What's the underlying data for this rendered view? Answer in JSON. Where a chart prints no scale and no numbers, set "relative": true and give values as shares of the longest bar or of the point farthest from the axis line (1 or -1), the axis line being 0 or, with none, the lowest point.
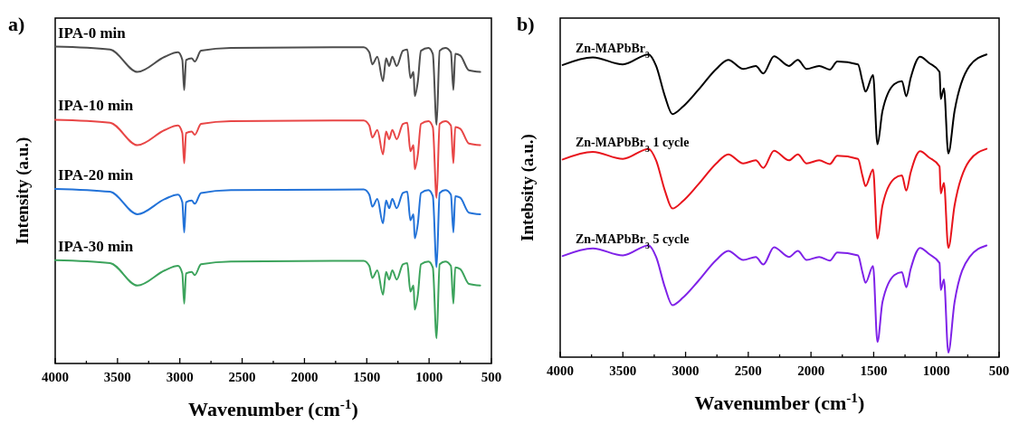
{
  "chart_data": [
    {
      "type": "line",
      "title": "a)",
      "xlabel": "Wavenumber (cm$^{-1}$)",
      "ylabel": "Intensity (a.u.)",
      "relative": true,
      "tick_labels": "x",
      "xlim": [
        4000,
        500
      ],
      "xticks": [
        4000,
        {
          "value": 3750,
          "label": null
        },
        3500,
        {
          "value": 3250,
          "label": null
        },
        3000,
        {
          "value": 2750,
          "label": null
        },
        2500,
        {
          "value": 2250,
          "label": null
        },
        2000,
        {
          "value": 1750,
          "label": null
        },
        1500,
        {
          "value": 1250,
          "label": null
        },
        1000,
        {
          "value": 750,
          "label": null
        },
        500
      ],
      "x": [
        4000,
        3560,
        3340,
        3120,
        3015,
        2980,
        2965,
        2950,
        2905,
        2880,
        2830,
        2590,
        1525,
        1480,
        1455,
        1415,
        1370,
        1345,
        1320,
        1295,
        1260,
        1210,
        1175,
        1150,
        1125,
        1115,
        1090,
        1065,
        1005,
        970,
        940,
        915,
        870,
        825,
        805,
        790,
        750,
        680,
        590
      ],
      "series": [
        {
          "name": "IPA-0 min",
          "color": "#4d4d4d",
          "values": [
            1.0,
            0.991,
            0.92,
            0.968,
            0.982,
            0.958,
            0.863,
            0.958,
            0.963,
            0.953,
            0.987,
            0.996,
            0.998,
            0.982,
            0.944,
            0.968,
            0.891,
            0.963,
            0.939,
            0.968,
            0.939,
            0.987,
            0.991,
            0.901,
            0.92,
            0.844,
            0.891,
            0.987,
            0.996,
            0.977,
            0.753,
            0.987,
            0.996,
            0.982,
            0.863,
            0.977,
            0.972,
            0.925,
            0.92
          ]
        },
        {
          "name": "IPA-10 min",
          "color": "#e84646",
          "values": [
            0.769,
            0.76,
            0.689,
            0.737,
            0.751,
            0.727,
            0.632,
            0.727,
            0.732,
            0.722,
            0.756,
            0.765,
            0.767,
            0.751,
            0.713,
            0.737,
            0.66,
            0.732,
            0.708,
            0.737,
            0.708,
            0.756,
            0.76,
            0.67,
            0.689,
            0.613,
            0.66,
            0.756,
            0.765,
            0.746,
            0.522,
            0.756,
            0.765,
            0.751,
            0.632,
            0.746,
            0.741,
            0.694,
            0.689
          ]
        },
        {
          "name": "IPA-20 min",
          "color": "#2272d8",
          "values": [
            0.551,
            0.542,
            0.471,
            0.519,
            0.533,
            0.509,
            0.414,
            0.509,
            0.514,
            0.504,
            0.538,
            0.547,
            0.549,
            0.533,
            0.495,
            0.519,
            0.442,
            0.514,
            0.49,
            0.519,
            0.49,
            0.538,
            0.542,
            0.452,
            0.471,
            0.395,
            0.442,
            0.538,
            0.547,
            0.528,
            0.304,
            0.538,
            0.547,
            0.533,
            0.414,
            0.528,
            0.523,
            0.476,
            0.471
          ]
        },
        {
          "name": "IPA-30 min",
          "color": "#3ca35c",
          "values": [
            0.326,
            0.317,
            0.246,
            0.294,
            0.308,
            0.284,
            0.189,
            0.284,
            0.289,
            0.279,
            0.313,
            0.322,
            0.324,
            0.308,
            0.27,
            0.294,
            0.217,
            0.289,
            0.265,
            0.294,
            0.265,
            0.313,
            0.317,
            0.227,
            0.246,
            0.17,
            0.217,
            0.313,
            0.322,
            0.303,
            0.079,
            0.313,
            0.322,
            0.308,
            0.189,
            0.303,
            0.298,
            0.251,
            0.246
          ]
        }
      ]
    },
    {
      "type": "line",
      "title": "b)",
      "xlabel": "Wavenumber (cm$^{-1}$)",
      "ylabel": "Intebsity (a.u.)",
      "relative": true,
      "tick_labels": "x",
      "xlim": [
        4000,
        500
      ],
      "xticks": [
        4000,
        {
          "value": 3750,
          "label": null
        },
        3500,
        {
          "value": 3250,
          "label": null
        },
        3000,
        {
          "value": 2750,
          "label": null
        },
        2500,
        {
          "value": 2250,
          "label": null
        },
        2000,
        {
          "value": 1750,
          "label": null
        },
        1500,
        {
          "value": 1250,
          "label": null
        },
        1000,
        {
          "value": 750,
          "label": null
        },
        500
      ],
      "x": [
        3980,
        3740,
        3500,
        3295,
        3235,
        3165,
        3105,
        3020,
        2900,
        2755,
        2660,
        2540,
        2440,
        2380,
        2295,
        2175,
        2105,
        2035,
        1935,
        1850,
        1790,
        1625,
        1590,
        1565,
        1505,
        1470,
        1430,
        1335,
        1275,
        1240,
        1205,
        1130,
        1060,
        975,
        965,
        940,
        905,
        855,
        735,
        600
      ],
      "series": [
        {
          "name": "Zn-MAPbBr$_{3}$",
          "color": "#000000",
          "values": [
            0.965,
            0.99,
            0.967,
            1.0,
            0.962,
            0.862,
            0.803,
            0.828,
            0.882,
            0.952,
            0.982,
            0.952,
            0.962,
            0.937,
            0.994,
            0.962,
            0.982,
            0.952,
            0.962,
            0.95,
            0.977,
            0.967,
            0.912,
            0.877,
            0.932,
            0.703,
            0.813,
            0.902,
            0.912,
            0.862,
            0.922,
            0.992,
            0.972,
            0.942,
            0.853,
            0.888,
            0.673,
            0.813,
            0.962,
            1.0
          ]
        },
        {
          "name": "Zn-MAPbBr$_{3}$ 1 cycle",
          "color": "#e8141c",
          "values": [
            0.653,
            0.678,
            0.655,
            0.688,
            0.65,
            0.55,
            0.491,
            0.516,
            0.57,
            0.64,
            0.67,
            0.64,
            0.65,
            0.625,
            0.682,
            0.65,
            0.67,
            0.64,
            0.65,
            0.638,
            0.665,
            0.655,
            0.6,
            0.565,
            0.62,
            0.391,
            0.501,
            0.59,
            0.6,
            0.55,
            0.61,
            0.68,
            0.66,
            0.63,
            0.541,
            0.576,
            0.361,
            0.501,
            0.65,
            0.688
          ]
        },
        {
          "name": "Zn-MAPbBr$_{3}$ 5 cycle",
          "color": "#7f22e8",
          "values": [
            0.334,
            0.359,
            0.336,
            0.369,
            0.331,
            0.231,
            0.172,
            0.197,
            0.251,
            0.321,
            0.351,
            0.321,
            0.331,
            0.306,
            0.363,
            0.331,
            0.351,
            0.321,
            0.331,
            0.319,
            0.346,
            0.336,
            0.281,
            0.246,
            0.301,
            0.05,
            0.182,
            0.271,
            0.281,
            0.231,
            0.291,
            0.361,
            0.341,
            0.311,
            0.222,
            0.257,
            0.015,
            0.182,
            0.331,
            0.369
          ]
        }
      ]
    }
  ]
}
